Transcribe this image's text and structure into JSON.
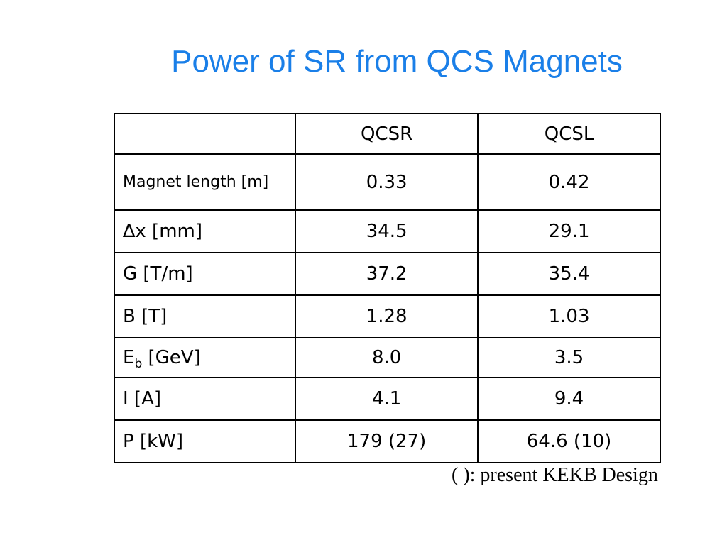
{
  "title": "Power of SR from QCS Magnets",
  "table": {
    "headers": [
      "",
      "QCSR",
      "QCSL"
    ],
    "rows": [
      {
        "label": "Magnet length [m]",
        "qcsr": "0.33",
        "qcsl": "0.42"
      },
      {
        "label": "∆x [mm]",
        "qcsr": "34.5",
        "qcsl": "29.1"
      },
      {
        "label": "G [T/m]",
        "qcsr": "37.2",
        "qcsl": "35.4"
      },
      {
        "label": "B [T]",
        "qcsr": "1.28",
        "qcsl": "1.03"
      },
      {
        "label_main": "E",
        "label_sub": "b",
        "label_unit": " [GeV]",
        "qcsr": "8.0",
        "qcsl": "3.5"
      },
      {
        "label": "I [A]",
        "qcsr": "4.1",
        "qcsl": "9.4"
      },
      {
        "label": "P [kW]",
        "qcsr": "179 (27)",
        "qcsl": "64.6 (10)"
      }
    ]
  },
  "footnote": "( ): present KEKB Design"
}
